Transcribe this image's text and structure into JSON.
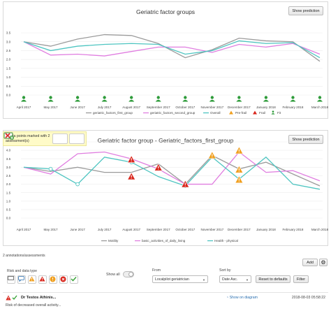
{
  "chart1": {
    "title": "Geriatric factor groups",
    "show_prediction": "Show prediction",
    "months": [
      "April 2017",
      "May 2017",
      "June 2017",
      "July 2017",
      "August 2017",
      "September 2017",
      "October 2017",
      "November 2017",
      "December 2017",
      "January 2018",
      "February 2018",
      "March 2018"
    ],
    "y_ticks": [
      "3.5",
      "3.0",
      "2.5",
      "2.0",
      "1.5",
      "1.0",
      "0.5",
      "0.0"
    ],
    "legend": [
      "geriatric_factors_first_group",
      "geriatric_factors_second_group",
      "Overall",
      "Pre-frail",
      "Frail",
      "Fit"
    ],
    "frailty_status_markers": [
      "fit",
      "fit",
      "fit",
      "fit",
      "fit",
      "fit",
      "fit",
      "fit",
      "fit",
      "fit",
      "fit",
      "fit"
    ]
  },
  "chart2": {
    "title": "Geriatric factor group - Geriatric_factors_first_group",
    "show_prediction": "Show prediction",
    "months": [
      "April 2017",
      "May 2017",
      "June 2017",
      "July 2017",
      "August 2017",
      "September 2017",
      "October 2017",
      "November 2017",
      "December 2017",
      "January 2018",
      "February 2018",
      "March 2018"
    ],
    "y_ticks": [
      "4.5",
      "4.0",
      "3.5",
      "3.0",
      "2.5",
      "2.0",
      "1.5",
      "1.0",
      "0.5",
      "0.0"
    ],
    "legend": [
      "Motility",
      "basic_activities_of_daily_living",
      "Health - physical"
    ]
  },
  "chart_data": [
    {
      "type": "line",
      "title": "Geriatric factor groups",
      "categories": [
        "April 2017",
        "May 2017",
        "June 2017",
        "July 2017",
        "August 2017",
        "September 2017",
        "October 2017",
        "November 2017",
        "December 2017",
        "January 2018",
        "February 2018",
        "March 2018"
      ],
      "ylim": [
        0,
        3.5
      ],
      "series": [
        {
          "name": "geriatric_factors_first_group",
          "color": "#9b9b9b",
          "values": [
            3.0,
            2.75,
            3.15,
            3.4,
            3.35,
            2.9,
            2.1,
            2.55,
            3.2,
            3.05,
            3.0,
            1.9
          ]
        },
        {
          "name": "geriatric_factors_second_group",
          "color": "#e07ee0",
          "values": [
            3.0,
            2.25,
            2.3,
            2.2,
            2.45,
            2.7,
            2.7,
            2.4,
            2.85,
            2.7,
            2.9,
            2.3
          ]
        },
        {
          "name": "Overall",
          "color": "#4ec5c1",
          "values": [
            3.0,
            2.5,
            2.75,
            2.85,
            2.9,
            2.85,
            2.3,
            2.5,
            3.05,
            2.9,
            2.95,
            2.1
          ]
        }
      ]
    },
    {
      "type": "line",
      "title": "Geriatric factor group - Geriatric_factors_first_group",
      "categories": [
        "April 2017",
        "May 2017",
        "June 2017",
        "July 2017",
        "August 2017",
        "September 2017",
        "October 2017",
        "November 2017",
        "December 2017",
        "January 2018",
        "February 2018",
        "March 2018"
      ],
      "ylim": [
        0,
        4.5
      ],
      "series": [
        {
          "name": "Motility",
          "color": "#9b9b9b",
          "values": [
            3.0,
            2.75,
            3.0,
            2.7,
            2.7,
            3.2,
            2.0,
            3.7,
            2.9,
            3.3,
            2.6,
            1.9
          ]
        },
        {
          "name": "basic_activities_of_daily_living",
          "color": "#e07ee0",
          "values": [
            3.0,
            2.6,
            3.8,
            3.9,
            3.5,
            2.9,
            2.0,
            2.0,
            3.9,
            2.7,
            2.8,
            2.2
          ]
        },
        {
          "name": "Health - physical",
          "color": "#4ec5c1",
          "values": [
            3.0,
            2.9,
            2.0,
            3.6,
            3.3,
            2.45,
            1.9,
            3.6,
            2.3,
            3.6,
            2.0,
            1.7
          ]
        }
      ]
    }
  ],
  "marked": {
    "text": "4 data points marked with 2 assessment(s)"
  },
  "annotations": {
    "count_label": "2 annotations/assessments",
    "add_label": "Add"
  },
  "filters": {
    "risk_label": "Risk and data type",
    "show_all_label": "Show all",
    "from_label": "From",
    "from_value": "Localpilot geriatrician",
    "sort_label": "Sort by",
    "sort_value": "Date Asc.",
    "reset_label": "Reset to defaults",
    "filter_label": "Filter"
  },
  "record": {
    "name": "Dr Testos Athinis...",
    "description": "Risk of decreased overall activity...",
    "link": "Show on diagram",
    "date": "2018-08-03 05:58:22"
  }
}
